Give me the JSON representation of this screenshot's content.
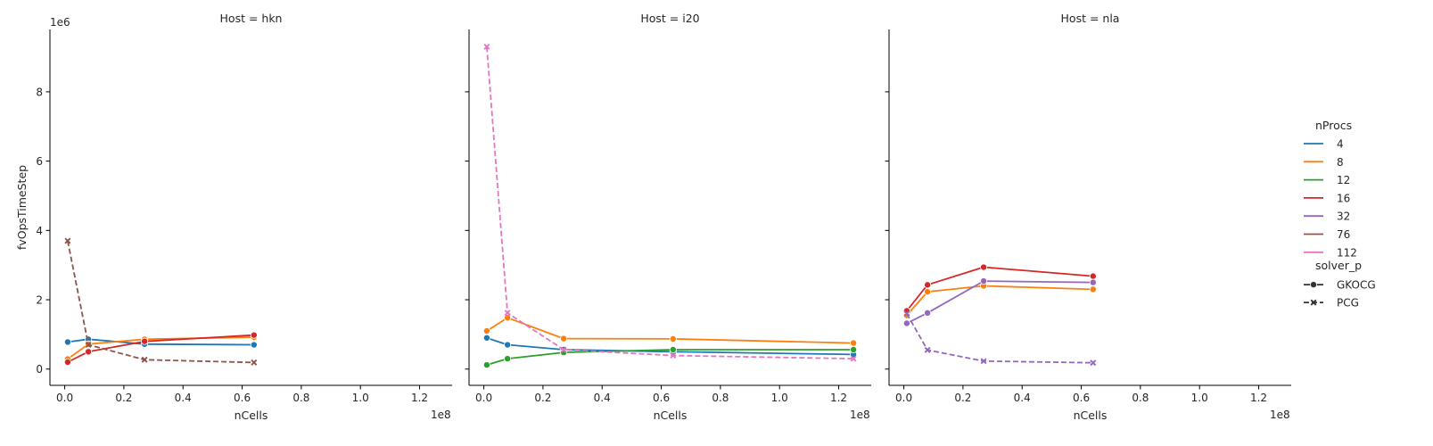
{
  "chart_data": {
    "type": "line",
    "facet_variable": "Host",
    "facets": [
      {
        "title": "Host = hkn",
        "host": "hkn",
        "series": [
          {
            "nProcs": "4",
            "solver": "GKOCG",
            "x": [
              1000000,
              8000000,
              27000000,
              64000000
            ],
            "y": [
              780000,
              860000,
              720000,
              700000
            ]
          },
          {
            "nProcs": "8",
            "solver": "GKOCG",
            "x": [
              1000000,
              8000000,
              27000000,
              64000000
            ],
            "y": [
              290000,
              720000,
              860000,
              920000
            ]
          },
          {
            "nProcs": "16",
            "solver": "GKOCG",
            "x": [
              1000000,
              8000000,
              27000000,
              64000000
            ],
            "y": [
              200000,
              500000,
              800000,
              980000
            ]
          },
          {
            "nProcs": "76",
            "solver": "PCG",
            "x": [
              1000000,
              8000000,
              27000000,
              64000000
            ],
            "y": [
              3700000,
              700000,
              270000,
              190000
            ]
          }
        ]
      },
      {
        "title": "Host = i20",
        "host": "i20",
        "series": [
          {
            "nProcs": "4",
            "solver": "GKOCG",
            "x": [
              1000000,
              8000000,
              27000000,
              64000000,
              125000000
            ],
            "y": [
              900000,
              700000,
              560000,
              500000,
              420000
            ]
          },
          {
            "nProcs": "8",
            "solver": "GKOCG",
            "x": [
              1000000,
              8000000,
              27000000,
              64000000,
              125000000
            ],
            "y": [
              1100000,
              1480000,
              880000,
              870000,
              750000
            ]
          },
          {
            "nProcs": "12",
            "solver": "GKOCG",
            "x": [
              1000000,
              8000000,
              27000000,
              64000000,
              125000000
            ],
            "y": [
              120000,
              300000,
              480000,
              560000,
              560000
            ]
          },
          {
            "nProcs": "112",
            "solver": "PCG",
            "x": [
              1000000,
              8000000,
              27000000,
              64000000,
              125000000
            ],
            "y": [
              9300000,
              1620000,
              560000,
              390000,
              300000
            ]
          }
        ]
      },
      {
        "title": "Host = nla",
        "host": "nla",
        "series": [
          {
            "nProcs": "8",
            "solver": "GKOCG",
            "x": [
              1000000,
              8000000,
              27000000,
              64000000
            ],
            "y": [
              1550000,
              2230000,
              2400000,
              2300000
            ]
          },
          {
            "nProcs": "16",
            "solver": "GKOCG",
            "x": [
              1000000,
              8000000,
              27000000,
              64000000
            ],
            "y": [
              1680000,
              2430000,
              2940000,
              2680000
            ]
          },
          {
            "nProcs": "32",
            "solver": "GKOCG",
            "x": [
              1000000,
              8000000,
              27000000,
              64000000
            ],
            "y": [
              1320000,
              1620000,
              2540000,
              2500000
            ]
          },
          {
            "nProcs": "32",
            "solver": "PCG",
            "x": [
              1000000,
              8000000,
              27000000,
              64000000
            ],
            "y": [
              1600000,
              550000,
              230000,
              180000
            ]
          }
        ]
      }
    ],
    "xlabel": "nCells",
    "ylabel": "fvOpsTimeStep",
    "x_offset_label": "1e8",
    "y_offset_label": "1e6",
    "xlim": [
      -5000000,
      131000000
    ],
    "ylim": [
      -470000,
      9800000
    ],
    "x_ticks": [
      0,
      20000000,
      40000000,
      60000000,
      80000000,
      100000000,
      120000000
    ],
    "x_tick_labels": [
      "0.0",
      "0.2",
      "0.4",
      "0.6",
      "0.8",
      "1.0",
      "1.2"
    ],
    "y_ticks": [
      0,
      2000000,
      4000000,
      6000000,
      8000000
    ],
    "y_tick_labels": [
      "0",
      "2",
      "4",
      "6",
      "8"
    ],
    "grid": false,
    "legend": {
      "placement": "right",
      "hue_title": "nProcs",
      "hue_entries": [
        {
          "label": "4",
          "color": "#1f77b4"
        },
        {
          "label": "8",
          "color": "#ff7f0e"
        },
        {
          "label": "12",
          "color": "#2ca02c"
        },
        {
          "label": "16",
          "color": "#d62728"
        },
        {
          "label": "32",
          "color": "#9467bd"
        },
        {
          "label": "76",
          "color": "#8c564b"
        },
        {
          "label": "112",
          "color": "#e377c2"
        }
      ],
      "style_title": "solver_p",
      "style_entries": [
        {
          "label": "GKOCG",
          "line": "solid",
          "marker": "circle"
        },
        {
          "label": "PCG",
          "line": "dashed",
          "marker": "x"
        }
      ]
    }
  }
}
